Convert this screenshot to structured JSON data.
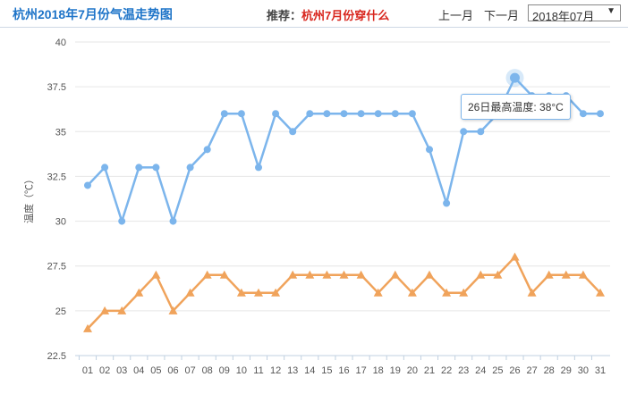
{
  "header": {
    "title": "杭州2018年7月份气温走势图",
    "recommend_label": "推荐：",
    "recommend_link": "杭州7月份穿什么",
    "prev_month": "上一月",
    "next_month": "下一月",
    "month_select": {
      "value": "2018年07月",
      "arrow": "▼"
    }
  },
  "colors": {
    "high": "#7cb5ec",
    "low": "#f0a35b",
    "grid": "#e6e6e6",
    "title": "#1e74c8",
    "link": "#d8251d"
  },
  "chart_data": {
    "type": "line",
    "ylabel": "温度（℃）",
    "ylim": [
      22.5,
      40
    ],
    "yticks": [
      22.5,
      25,
      27.5,
      30,
      32.5,
      35,
      37.5,
      40
    ],
    "categories": [
      "01",
      "02",
      "03",
      "04",
      "05",
      "06",
      "07",
      "08",
      "09",
      "10",
      "11",
      "12",
      "13",
      "14",
      "15",
      "16",
      "17",
      "18",
      "19",
      "20",
      "21",
      "22",
      "23",
      "24",
      "25",
      "26",
      "27",
      "28",
      "29",
      "30",
      "31"
    ],
    "series": [
      {
        "key": "high",
        "marker": "circle",
        "values": [
          32,
          33,
          30,
          33,
          33,
          30,
          33,
          34,
          36,
          36,
          33,
          36,
          35,
          36,
          36,
          36,
          36,
          36,
          36,
          36,
          34,
          31,
          35,
          35,
          36,
          38,
          37,
          37,
          37,
          36,
          36
        ]
      },
      {
        "key": "low",
        "marker": "triangle",
        "values": [
          24,
          25,
          25,
          26,
          27,
          25,
          26,
          27,
          27,
          26,
          26,
          26,
          27,
          27,
          27,
          27,
          27,
          26,
          27,
          26,
          27,
          26,
          26,
          27,
          27,
          28,
          26,
          27,
          27,
          27,
          26
        ]
      }
    ],
    "tooltip": {
      "text": "26日最高温度: 38°C",
      "index": 25
    },
    "grid": true,
    "legend": "none"
  }
}
